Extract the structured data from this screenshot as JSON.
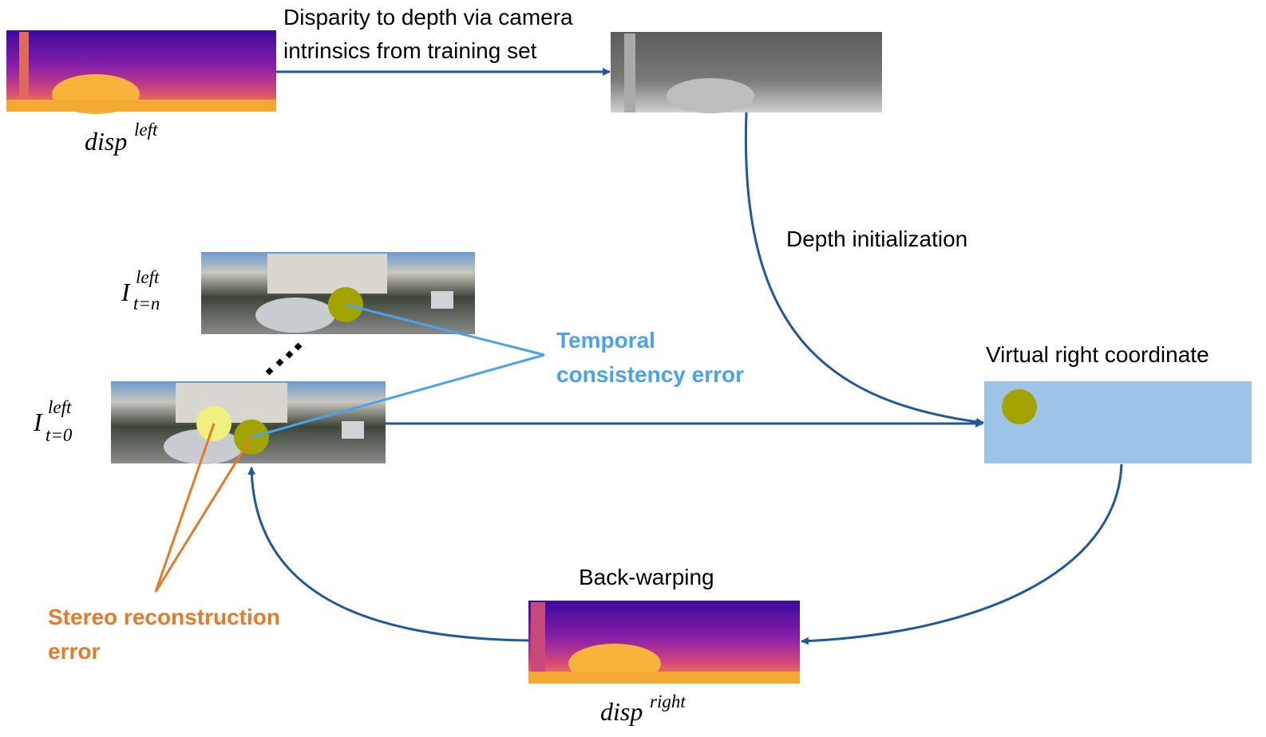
{
  "top_image": {
    "label": {
      "base": "disp",
      "sup": "left"
    }
  },
  "depth_arrow_label": [
    "Disparity to depth via camera",
    "intrinsics from training set"
  ],
  "depth_init_label": "Depth initialization",
  "frame_n": {
    "label": {
      "base": "I",
      "sup": "left",
      "sub": "t=n"
    }
  },
  "frame_0": {
    "label": {
      "base": "I",
      "sup": "left",
      "sub": "t=0"
    }
  },
  "temporal_label": [
    "Temporal",
    "consistency error"
  ],
  "stereo_label": [
    "Stereo reconstruction",
    "error"
  ],
  "virtual_right": {
    "title": "Virtual right coordinate"
  },
  "back_warping": "Back-warping",
  "bottom_image": {
    "label": {
      "base": "disp",
      "sup": "right"
    }
  }
}
